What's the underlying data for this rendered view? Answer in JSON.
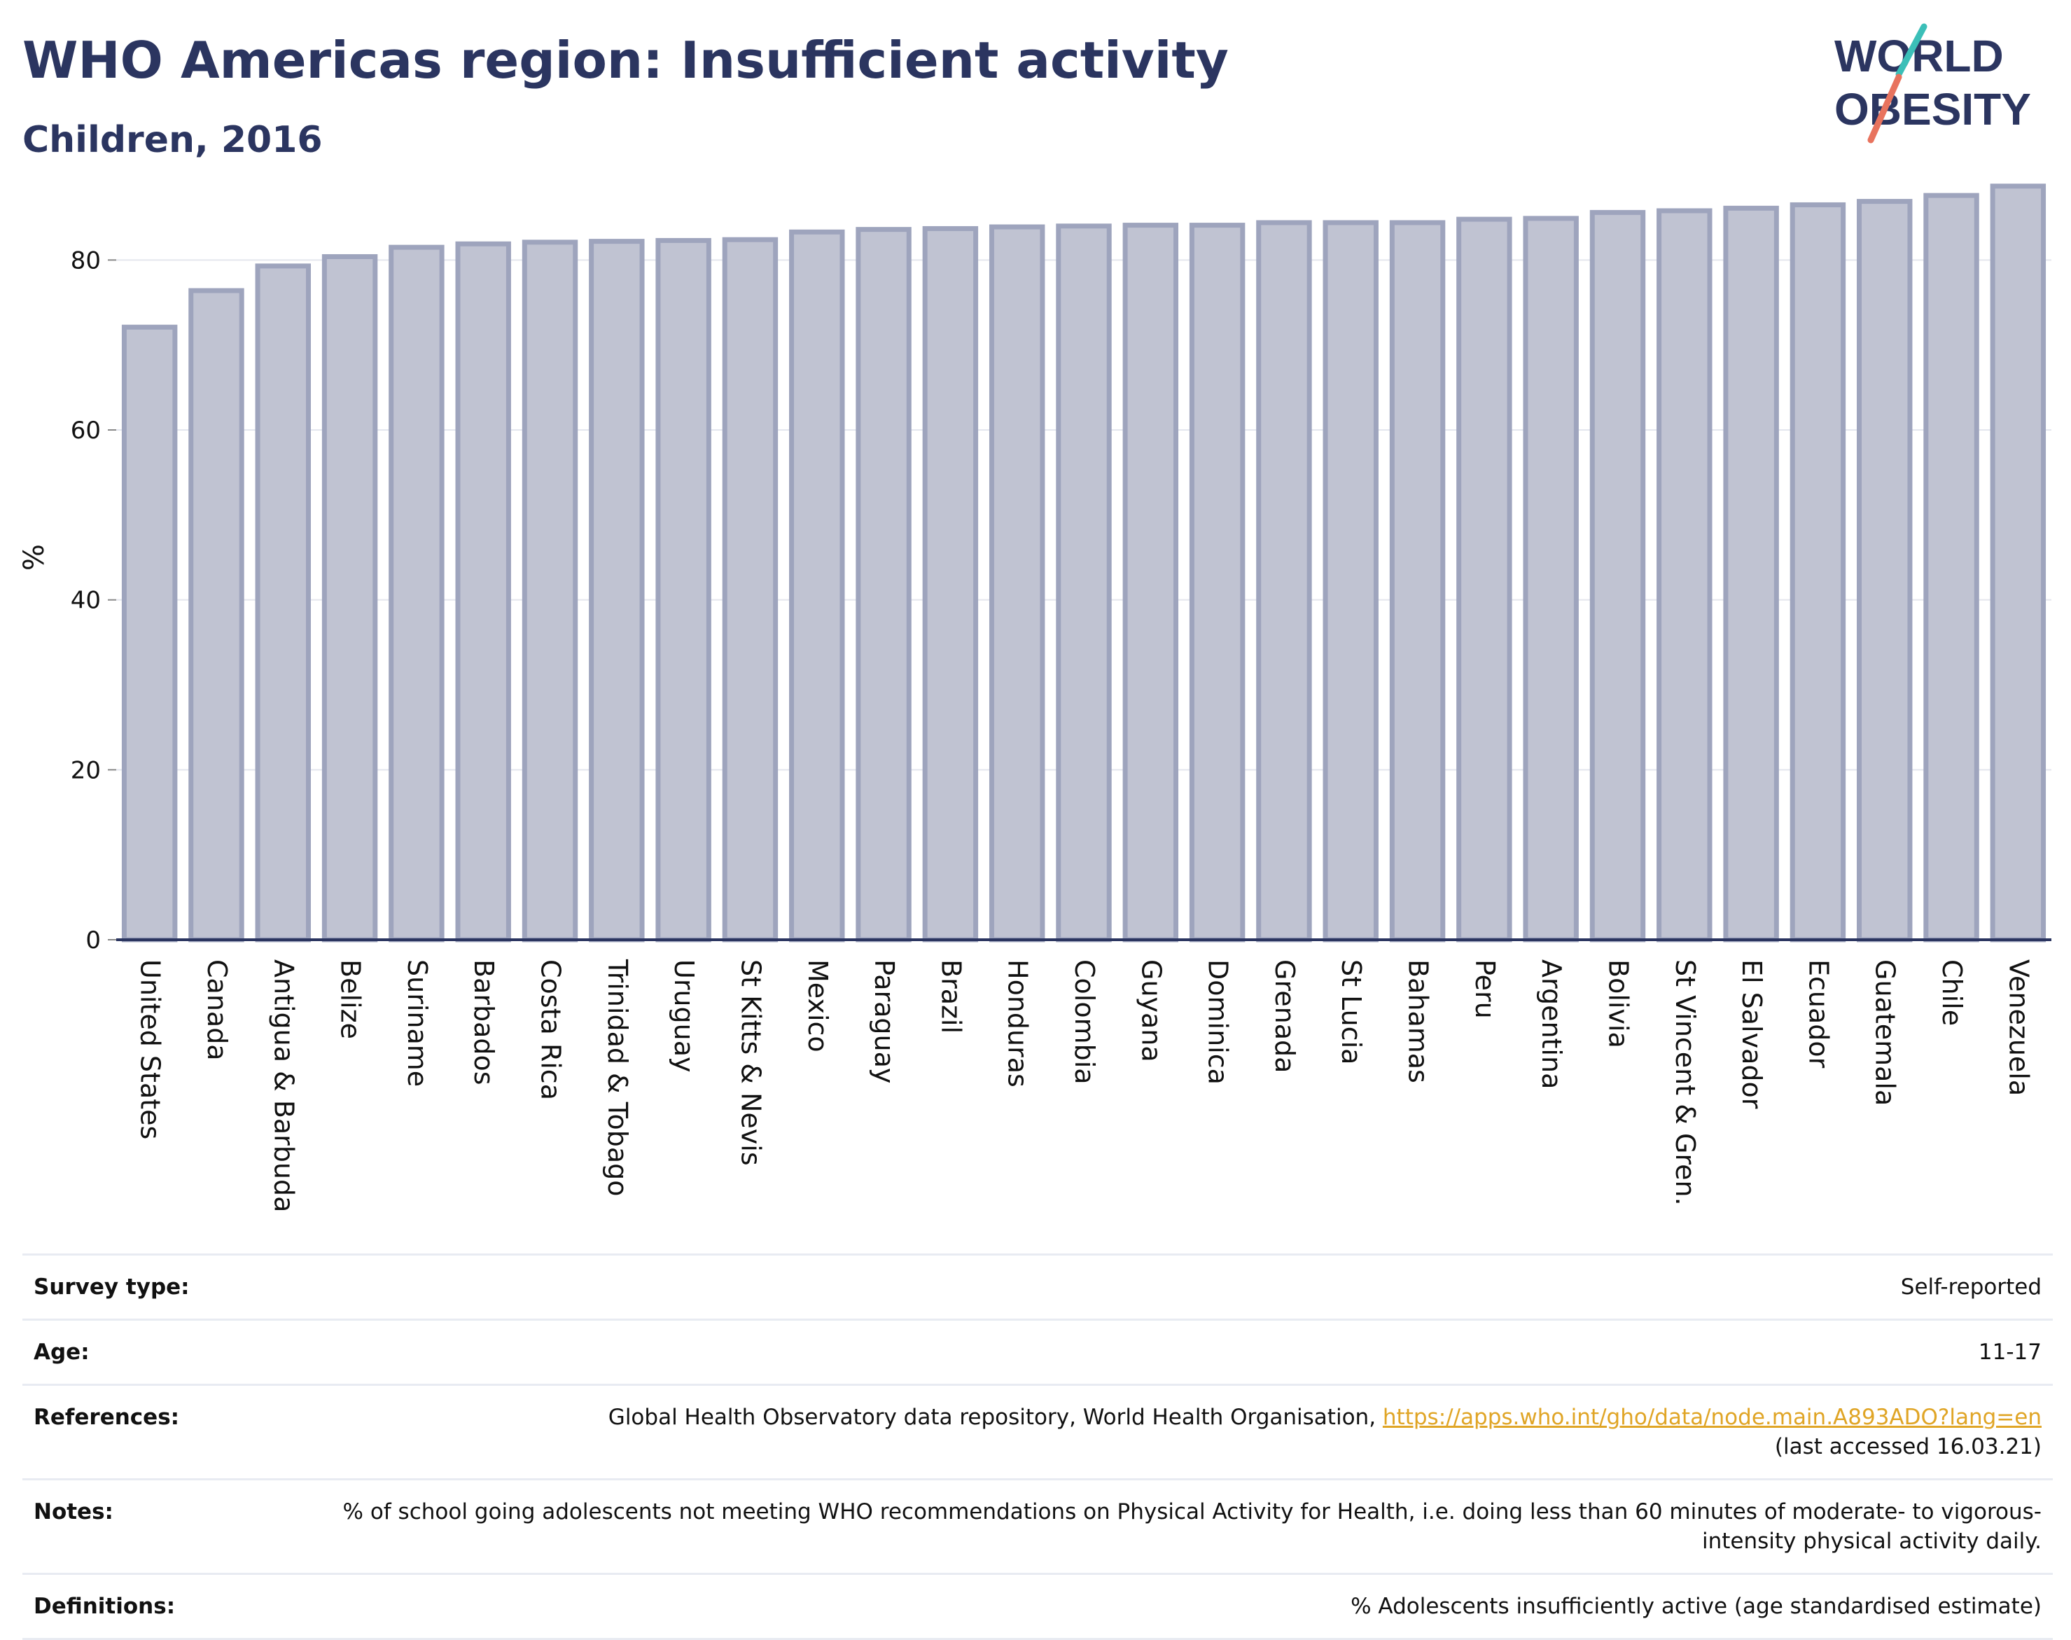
{
  "header": {
    "title": "WHO Americas region: Insufficient activity",
    "subtitle": "Children, 2016"
  },
  "logo": {
    "line1": "WORLD",
    "line2": "OBESITY"
  },
  "chart_data": {
    "type": "bar",
    "xlabel": "",
    "ylabel": "%",
    "ylim": [
      0,
      90
    ],
    "yticks": [
      0,
      20,
      40,
      60,
      80
    ],
    "grid": true,
    "categories": [
      "United States",
      "Canada",
      "Antigua & Barbuda",
      "Belize",
      "Suriname",
      "Barbados",
      "Costa Rica",
      "Trinidad & Tobago",
      "Uruguay",
      "St Kitts & Nevis",
      "Mexico",
      "Paraguay",
      "Brazil",
      "Honduras",
      "Colombia",
      "Guyana",
      "Dominica",
      "Grenada",
      "St Lucia",
      "Bahamas",
      "Peru",
      "Argentina",
      "Bolivia",
      "St Vincent & Gren.",
      "El Salvador",
      "Ecuador",
      "Guatemala",
      "Chile",
      "Venezuela"
    ],
    "values": [
      72.1,
      76.4,
      79.3,
      80.4,
      81.5,
      81.9,
      82.1,
      82.2,
      82.3,
      82.4,
      83.3,
      83.6,
      83.7,
      83.9,
      84.0,
      84.1,
      84.1,
      84.4,
      84.4,
      84.4,
      84.8,
      84.9,
      85.6,
      85.8,
      86.1,
      86.5,
      86.9,
      87.6,
      88.7
    ],
    "colors": {
      "bar_fill": "#c0c3d2",
      "bar_stroke": "#9ea4bd",
      "axis": "#2b3560"
    }
  },
  "meta": {
    "survey_type_label": "Survey type:",
    "survey_type_value": "Self-reported",
    "age_label": "Age:",
    "age_value": "11-17",
    "references_label": "References:",
    "references_text": "Global Health Observatory data repository, World Health Organisation, ",
    "references_link": "https://apps.who.int/gho/data/node.main.A893ADO?lang=en",
    "references_suffix": "(last accessed 16.03.21)",
    "notes_label": "Notes:",
    "notes_value": "% of school going adolescents not meeting WHO recommendations on Physical Activity for Health, i.e. doing less than 60 minutes of moderate- to vigorous-intensity physical activity daily.",
    "definitions_label": "Definitions:",
    "definitions_value": "% Adolescents insufficiently active (age standardised estimate)"
  }
}
